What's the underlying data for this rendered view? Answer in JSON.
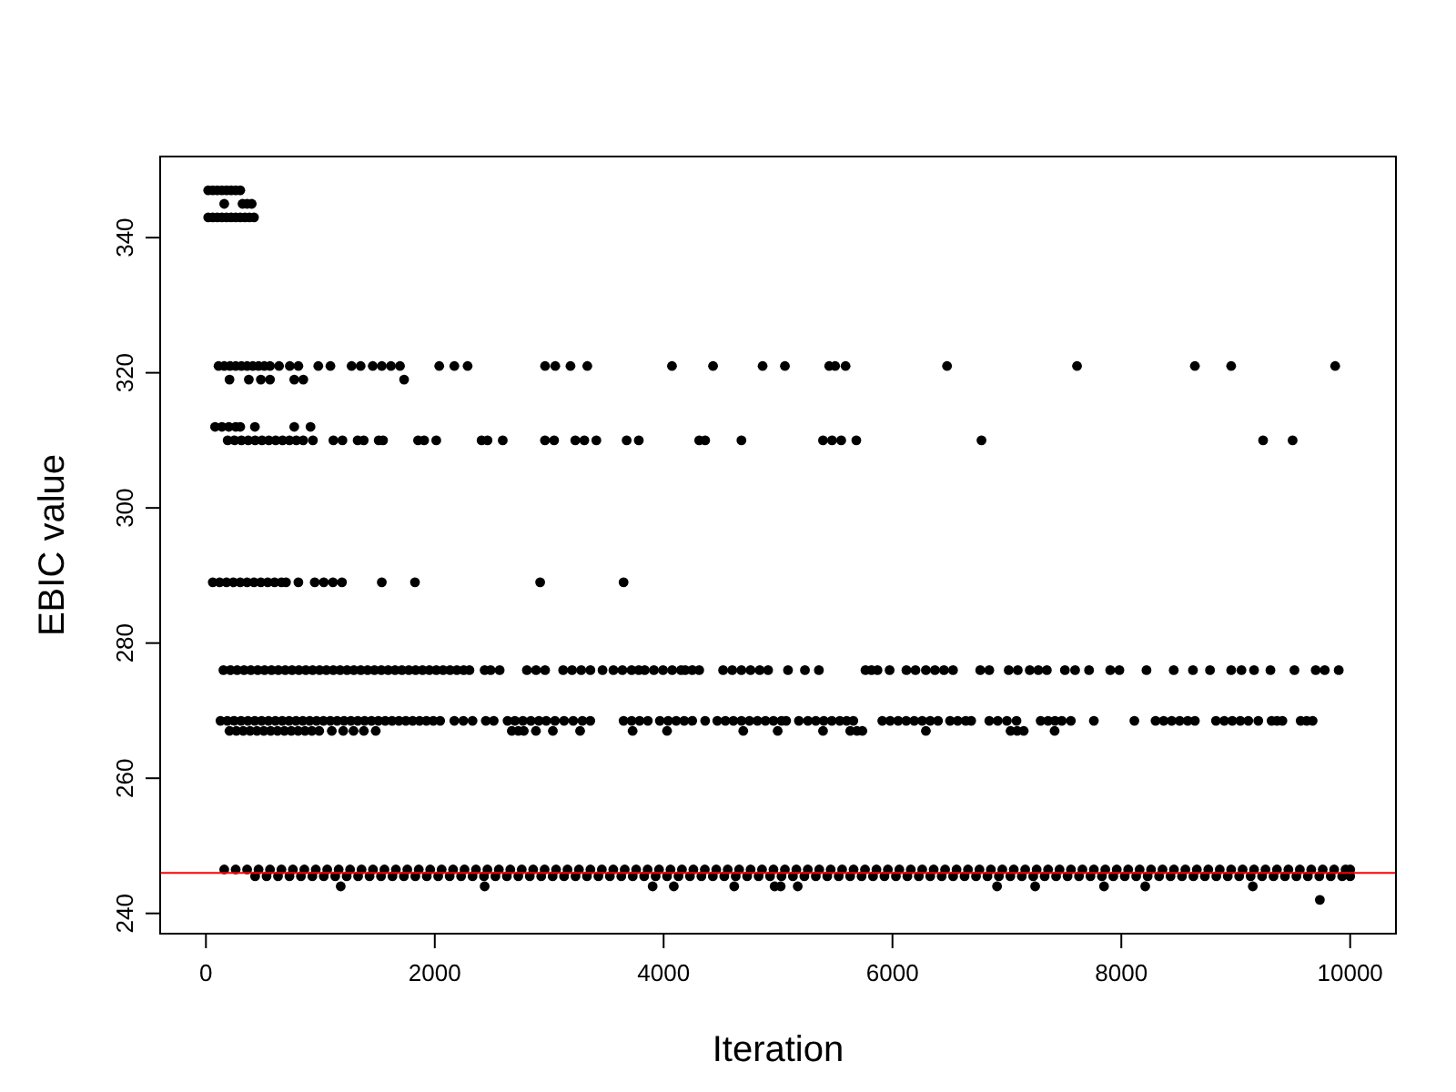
{
  "chart_data": {
    "type": "scatter",
    "xlabel": "Iteration",
    "ylabel": "EBIC value",
    "xlim": [
      -400,
      10400
    ],
    "ylim": [
      237,
      352
    ],
    "xticks": [
      0,
      2000,
      4000,
      6000,
      8000,
      10000
    ],
    "yticks": [
      240,
      260,
      280,
      300,
      320,
      340
    ],
    "marker": "circle",
    "ref_lines": [
      {
        "axis": "y",
        "value": 246,
        "color": "#ff0000"
      }
    ],
    "series": [
      {
        "color": "#000000",
        "x": [
          20,
          60,
          100,
          140,
          180,
          220,
          260,
          300
        ],
        "values": [
          347,
          347,
          347,
          347,
          347,
          347,
          347,
          347
        ]
      },
      {
        "color": "#000000",
        "x": [
          160,
          320,
          360,
          400
        ],
        "values": [
          345,
          345,
          345,
          345
        ]
      },
      {
        "color": "#000000",
        "x": [
          20,
          60,
          100,
          140,
          180,
          220,
          260,
          300,
          340,
          380,
          420
        ],
        "values": [
          343,
          343,
          343,
          343,
          343,
          343,
          343,
          343,
          343,
          343,
          343
        ]
      },
      {
        "color": "#000000",
        "x": [
          110,
          160,
          210,
          260,
          310,
          360,
          410,
          460,
          510,
          560,
          639,
          733,
          808,
          982,
          1088,
          1273,
          1352,
          1458,
          1537,
          1617,
          1696,
          2039,
          2171,
          2287,
          2964,
          3053,
          3186,
          3333,
          4073,
          4432,
          4865,
          5060,
          5447,
          5499,
          5590,
          6477,
          7613,
          8643,
          8960,
          9869
        ],
        "values": [
          321,
          321,
          321,
          321,
          321,
          321,
          321,
          321,
          321,
          321,
          321,
          321,
          321,
          321,
          321,
          321,
          321,
          321,
          321,
          321,
          321,
          321,
          321,
          321,
          321,
          321,
          321,
          321,
          321,
          321,
          321,
          321,
          321,
          321,
          321,
          321,
          321,
          321,
          321,
          321
        ]
      },
      {
        "color": "#000000",
        "x": [
          206,
          375,
          480,
          560,
          772,
          851,
          1732
        ],
        "values": [
          319,
          319,
          319,
          319,
          319,
          319,
          319
        ]
      },
      {
        "color": "#000000",
        "x": [
          80,
          140,
          200,
          260,
          300,
          428,
          772,
          914
        ],
        "values": [
          312,
          312,
          312,
          312,
          312,
          312,
          312,
          312
        ]
      },
      {
        "color": "#000000",
        "x": [
          190,
          250,
          310,
          370,
          430,
          490,
          550,
          610,
          670,
          730,
          790,
          850,
          935,
          1114,
          1193,
          1326,
          1379,
          1510,
          1548,
          1854,
          1907,
          2013,
          2409,
          2461,
          2594,
          2963,
          3043,
          3228,
          3307,
          3412,
          3677,
          3783,
          4311,
          4363,
          4680,
          5393,
          5472,
          5552,
          5684,
          6778,
          9239,
          9497
        ],
        "values": [
          310,
          310,
          310,
          310,
          310,
          310,
          310,
          310,
          310,
          310,
          310,
          310,
          310,
          310,
          310,
          310,
          310,
          310,
          310,
          310,
          310,
          310,
          310,
          310,
          310,
          310,
          310,
          310,
          310,
          310,
          310,
          310,
          310,
          310,
          310,
          310,
          310,
          310,
          310,
          310,
          310,
          310
        ]
      },
      {
        "color": "#000000",
        "x": [
          60,
          120,
          180,
          240,
          300,
          360,
          420,
          480,
          540,
          600,
          660,
          700,
          808,
          951,
          1030,
          1110,
          1189,
          1537,
          1827,
          2921,
          3650
        ],
        "values": [
          289,
          289,
          289,
          289,
          289,
          289,
          289,
          289,
          289,
          289,
          289,
          289,
          289,
          289,
          289,
          289,
          289,
          289,
          289,
          289,
          289
        ]
      },
      {
        "color": "#000000",
        "x": [
          153,
          213,
          273,
          333,
          393,
          453,
          513,
          573,
          633,
          693,
          753,
          813,
          873,
          933,
          993,
          1053,
          1113,
          1173,
          1233,
          1293,
          1353,
          1413,
          1473,
          1533,
          1593,
          1653,
          1713,
          1773,
          1833,
          1893,
          1953,
          2013,
          2073,
          2133,
          2193,
          2253,
          2303,
          2436,
          2488,
          2567,
          2805,
          2885,
          2964,
          3122,
          3200,
          3280,
          3360,
          3466,
          3561,
          3640,
          3720,
          3783,
          3835,
          3915,
          3995,
          4075,
          4152,
          4189,
          4250,
          4311,
          4520,
          4600,
          4680,
          4760,
          4840,
          4913,
          5087,
          5235,
          5357,
          5764,
          5817,
          5869,
          5975,
          6122,
          6201,
          6292,
          6371,
          6450,
          6529,
          6767,
          6846,
          7016,
          7095,
          7200,
          7275,
          7349,
          7507,
          7596,
          7718,
          7903,
          7983,
          8220,
          8458,
          8626,
          8775,
          8960,
          9050,
          9160,
          9303,
          9513,
          9699,
          9778,
          9900
        ],
        "values": [
          276,
          276,
          276,
          276,
          276,
          276,
          276,
          276,
          276,
          276,
          276,
          276,
          276,
          276,
          276,
          276,
          276,
          276,
          276,
          276,
          276,
          276,
          276,
          276,
          276,
          276,
          276,
          276,
          276,
          276,
          276,
          276,
          276,
          276,
          276,
          276,
          276,
          276,
          276,
          276,
          276,
          276,
          276,
          276,
          276,
          276,
          276,
          276,
          276,
          276,
          276,
          276,
          276,
          276,
          276,
          276,
          276,
          276,
          276,
          276,
          276,
          276,
          276,
          276,
          276,
          276,
          276,
          276,
          276,
          276,
          276,
          276,
          276,
          276,
          276,
          276,
          276,
          276,
          276,
          276,
          276,
          276,
          276,
          276,
          276,
          276,
          276,
          276,
          276,
          276,
          276,
          276,
          276,
          276,
          276,
          276,
          276,
          276,
          276,
          276,
          276,
          276,
          276
        ]
      },
      {
        "color": "#000000",
        "x": [
          127,
          187,
          247,
          307,
          367,
          427,
          487,
          547,
          607,
          667,
          727,
          787,
          847,
          907,
          967,
          1027,
          1087,
          1147,
          1207,
          1267,
          1327,
          1387,
          1447,
          1507,
          1567,
          1627,
          1687,
          1747,
          1807,
          1867,
          1927,
          1987,
          2047,
          2171,
          2250,
          2330,
          2446,
          2515,
          2636,
          2700,
          2770,
          2840,
          2910,
          2974,
          3050,
          3130,
          3210,
          3290,
          3359,
          3650,
          3720,
          3790,
          3862,
          3967,
          4040,
          4110,
          4180,
          4250,
          4363,
          4469,
          4540,
          4610,
          4680,
          4750,
          4820,
          4890,
          4960,
          5030,
          5071,
          5182,
          5261,
          5330,
          5400,
          5470,
          5540,
          5600,
          5658,
          5911,
          5980,
          6050,
          6120,
          6190,
          6260,
          6330,
          6398,
          6503,
          6570,
          6640,
          6688,
          6846,
          6920,
          7000,
          7084,
          7295,
          7360,
          7420,
          7480,
          7559,
          7760,
          8114,
          8299,
          8370,
          8440,
          8510,
          8580,
          8643,
          8827,
          8900,
          8970,
          9040,
          9110,
          9197,
          9313,
          9360,
          9408,
          9567,
          9620,
          9672
        ],
        "values": [
          268.5,
          268.5,
          268.5,
          268.5,
          268.5,
          268.5,
          268.5,
          268.5,
          268.5,
          268.5,
          268.5,
          268.5,
          268.5,
          268.5,
          268.5,
          268.5,
          268.5,
          268.5,
          268.5,
          268.5,
          268.5,
          268.5,
          268.5,
          268.5,
          268.5,
          268.5,
          268.5,
          268.5,
          268.5,
          268.5,
          268.5,
          268.5,
          268.5,
          268.5,
          268.5,
          268.5,
          268.5,
          268.5,
          268.5,
          268.5,
          268.5,
          268.5,
          268.5,
          268.5,
          268.5,
          268.5,
          268.5,
          268.5,
          268.5,
          268.5,
          268.5,
          268.5,
          268.5,
          268.5,
          268.5,
          268.5,
          268.5,
          268.5,
          268.5,
          268.5,
          268.5,
          268.5,
          268.5,
          268.5,
          268.5,
          268.5,
          268.5,
          268.5,
          268.5,
          268.5,
          268.5,
          268.5,
          268.5,
          268.5,
          268.5,
          268.5,
          268.5,
          268.5,
          268.5,
          268.5,
          268.5,
          268.5,
          268.5,
          268.5,
          268.5,
          268.5,
          268.5,
          268.5,
          268.5,
          268.5,
          268.5,
          268.5,
          268.5,
          268.5,
          268.5,
          268.5,
          268.5,
          268.5,
          268.5,
          268.5,
          268.5,
          268.5,
          268.5,
          268.5,
          268.5,
          268.5,
          268.5,
          268.5,
          268.5,
          268.5,
          268.5,
          268.5,
          268.5,
          268.5,
          268.5,
          268.5,
          268.5,
          268.5
        ]
      },
      {
        "color": "#000000",
        "x": [
          206,
          266,
          326,
          386,
          446,
          506,
          566,
          626,
          686,
          746,
          806,
          866,
          926,
          990,
          1100,
          1200,
          1290,
          1380,
          1484,
          2673,
          2730,
          2778,
          2884,
          3032,
          3270,
          3729,
          4030,
          4696,
          4997,
          5393,
          5631,
          5690,
          5737,
          6292,
          7032,
          7090,
          7147,
          7417
        ],
        "values": [
          267,
          267,
          267,
          267,
          267,
          267,
          267,
          267,
          267,
          267,
          267,
          267,
          267,
          267,
          267,
          267,
          267,
          267,
          267,
          267,
          267,
          267,
          267,
          267,
          267,
          267,
          267,
          267,
          267,
          267,
          267,
          267,
          267,
          267,
          267,
          267,
          267,
          267
        ]
      },
      {
        "color": "#000000",
        "x": [
          160,
          260,
          360,
          460,
          560,
          660,
          760,
          860,
          960,
          1060,
          1160,
          1260,
          1360,
          1460,
          1560,
          1660,
          1760,
          1860,
          1960,
          2060,
          2160,
          2260,
          2360,
          2460,
          2560,
          2660,
          2760,
          2860,
          2960,
          3060,
          3160,
          3260,
          3360,
          3460,
          3560,
          3660,
          3760,
          3860,
          3960,
          4060,
          4160,
          4260,
          4360,
          4460,
          4560,
          4660,
          4760,
          4860,
          4960,
          5060,
          5160,
          5260,
          5360,
          5460,
          5560,
          5660,
          5760,
          5860,
          5960,
          6060,
          6160,
          6260,
          6360,
          6460,
          6560,
          6660,
          6760,
          6860,
          6960,
          7060,
          7160,
          7260,
          7360,
          7460,
          7560,
          7660,
          7760,
          7860,
          7960,
          8060,
          8160,
          8260,
          8360,
          8460,
          8560,
          8660,
          8760,
          8860,
          8960,
          9060,
          9160,
          9260,
          9360,
          9460,
          9560,
          9660,
          9760,
          9860,
          9960,
          10000
        ],
        "values": [
          246.5,
          246.5,
          246.5,
          246.5,
          246.5,
          246.5,
          246.5,
          246.5,
          246.5,
          246.5,
          246.5,
          246.5,
          246.5,
          246.5,
          246.5,
          246.5,
          246.5,
          246.5,
          246.5,
          246.5,
          246.5,
          246.5,
          246.5,
          246.5,
          246.5,
          246.5,
          246.5,
          246.5,
          246.5,
          246.5,
          246.5,
          246.5,
          246.5,
          246.5,
          246.5,
          246.5,
          246.5,
          246.5,
          246.5,
          246.5,
          246.5,
          246.5,
          246.5,
          246.5,
          246.5,
          246.5,
          246.5,
          246.5,
          246.5,
          246.5,
          246.5,
          246.5,
          246.5,
          246.5,
          246.5,
          246.5,
          246.5,
          246.5,
          246.5,
          246.5,
          246.5,
          246.5,
          246.5,
          246.5,
          246.5,
          246.5,
          246.5,
          246.5,
          246.5,
          246.5,
          246.5,
          246.5,
          246.5,
          246.5,
          246.5,
          246.5,
          246.5,
          246.5,
          246.5,
          246.5,
          246.5,
          246.5,
          246.5,
          246.5,
          246.5,
          246.5,
          246.5,
          246.5,
          246.5,
          246.5,
          246.5,
          246.5,
          246.5,
          246.5,
          246.5,
          246.5,
          246.5,
          246.5,
          246.5,
          246.5
        ]
      },
      {
        "color": "#000000",
        "x": [
          430,
          530,
          630,
          730,
          830,
          930,
          1030,
          1130,
          1230,
          1330,
          1430,
          1530,
          1630,
          1730,
          1830,
          1930,
          2030,
          2130,
          2230,
          2330,
          2430,
          2530,
          2630,
          2730,
          2830,
          2930,
          3030,
          3130,
          3230,
          3330,
          3430,
          3530,
          3630,
          3730,
          3830,
          3930,
          4030,
          4130,
          4230,
          4330,
          4430,
          4530,
          4630,
          4730,
          4830,
          4930,
          5030,
          5130,
          5230,
          5330,
          5430,
          5530,
          5630,
          5730,
          5830,
          5930,
          6030,
          6130,
          6230,
          6330,
          6430,
          6530,
          6630,
          6730,
          6830,
          6930,
          7030,
          7130,
          7230,
          7330,
          7430,
          7530,
          7630,
          7730,
          7830,
          7930,
          8030,
          8130,
          8230,
          8330,
          8430,
          8530,
          8630,
          8730,
          8830,
          8930,
          9030,
          9130,
          9230,
          9330,
          9430,
          9530,
          9630,
          9730,
          9830,
          9930,
          10000
        ],
        "values": [
          245.5,
          245.5,
          245.5,
          245.5,
          245.5,
          245.5,
          245.5,
          245.5,
          245.5,
          245.5,
          245.5,
          245.5,
          245.5,
          245.5,
          245.5,
          245.5,
          245.5,
          245.5,
          245.5,
          245.5,
          245.5,
          245.5,
          245.5,
          245.5,
          245.5,
          245.5,
          245.5,
          245.5,
          245.5,
          245.5,
          245.5,
          245.5,
          245.5,
          245.5,
          245.5,
          245.5,
          245.5,
          245.5,
          245.5,
          245.5,
          245.5,
          245.5,
          245.5,
          245.5,
          245.5,
          245.5,
          245.5,
          245.5,
          245.5,
          245.5,
          245.5,
          245.5,
          245.5,
          245.5,
          245.5,
          245.5,
          245.5,
          245.5,
          245.5,
          245.5,
          245.5,
          245.5,
          245.5,
          245.5,
          245.5,
          245.5,
          245.5,
          245.5,
          245.5,
          245.5,
          245.5,
          245.5,
          245.5,
          245.5,
          245.5,
          245.5,
          245.5,
          245.5,
          245.5,
          245.5,
          245.5,
          245.5,
          245.5,
          245.5,
          245.5,
          245.5,
          245.5,
          245.5,
          245.5,
          245.5,
          245.5,
          245.5,
          245.5,
          245.5,
          245.5,
          245.5,
          245.5
        ]
      },
      {
        "color": "#000000",
        "x": [
          1178,
          2436,
          3904,
          4089,
          4617,
          4970,
          5023,
          5172,
          6914,
          7247,
          7849,
          8209,
          9149
        ],
        "values": [
          244,
          244,
          244,
          244,
          244,
          244,
          244,
          244,
          244,
          244,
          244,
          244,
          244
        ]
      },
      {
        "color": "#000000",
        "x": [
          9735
        ],
        "values": [
          242
        ]
      }
    ]
  }
}
